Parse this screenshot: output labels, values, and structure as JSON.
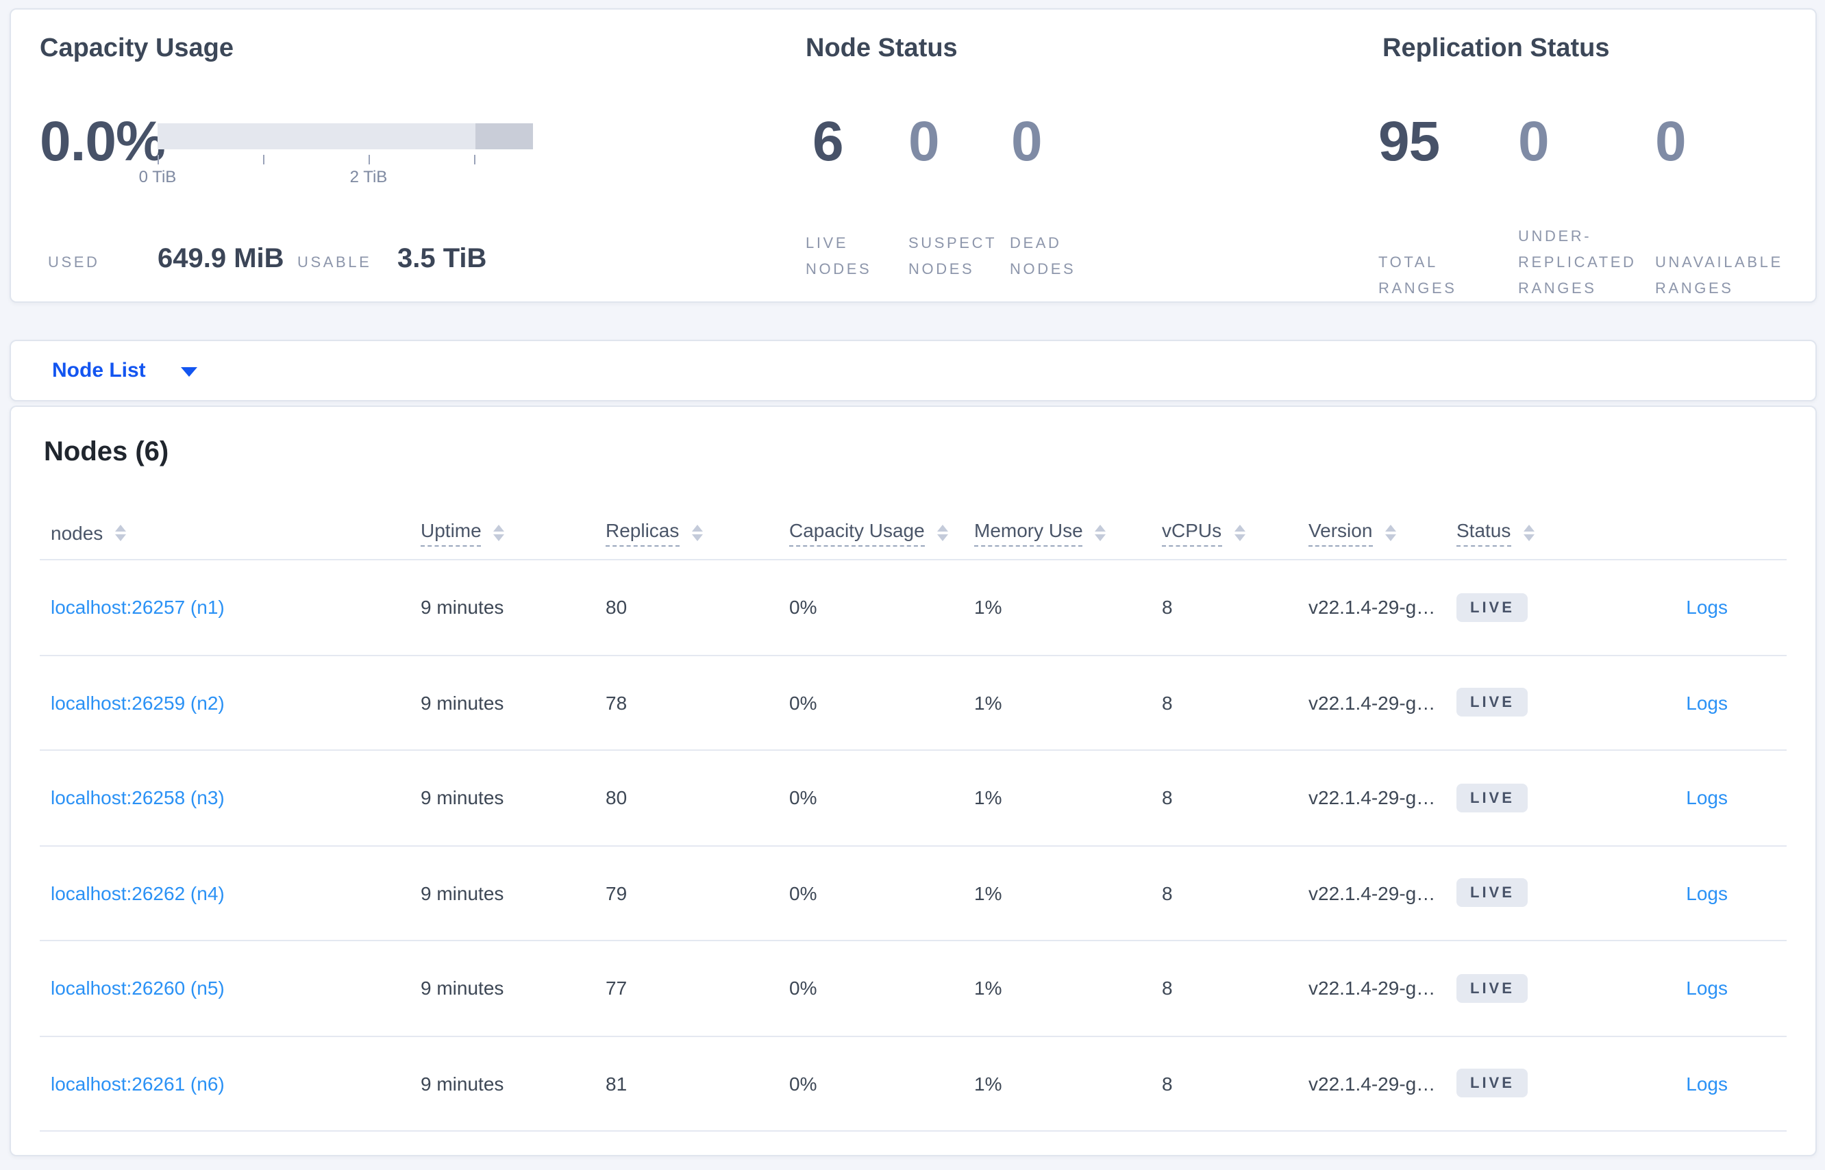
{
  "summary": {
    "capacity": {
      "title": "Capacity Usage",
      "percent": "0.0%",
      "ticks": [
        "0 TiB",
        "2 TiB"
      ],
      "used_label": "USED",
      "used_value": "649.9 MiB",
      "usable_label": "USABLE",
      "usable_value": "3.5 TiB"
    },
    "node_status": {
      "title": "Node Status",
      "stats": [
        {
          "value": "6",
          "label": "LIVE NODES"
        },
        {
          "value": "0",
          "label": "SUSPECT NODES"
        },
        {
          "value": "0",
          "label": "DEAD NODES"
        }
      ]
    },
    "replication": {
      "title": "Replication Status",
      "stats": [
        {
          "value": "95",
          "label": "TOTAL RANGES"
        },
        {
          "value": "0",
          "label": "UNDER-REPLICATED RANGES"
        },
        {
          "value": "0",
          "label": "UNAVAILABLE RANGES"
        }
      ]
    }
  },
  "view_selector": {
    "label": "Node List"
  },
  "table": {
    "title": "Nodes (6)",
    "columns": [
      {
        "label": "nodes",
        "tooltip": false
      },
      {
        "label": "Uptime",
        "tooltip": true
      },
      {
        "label": "Replicas",
        "tooltip": true
      },
      {
        "label": "Capacity Usage",
        "tooltip": true
      },
      {
        "label": "Memory Use",
        "tooltip": true
      },
      {
        "label": "vCPUs",
        "tooltip": true
      },
      {
        "label": "Version",
        "tooltip": true
      },
      {
        "label": "Status",
        "tooltip": true
      }
    ],
    "rows": [
      {
        "node": "localhost:26257 (n1)",
        "uptime": "9 minutes",
        "replicas": "80",
        "capacity": "0%",
        "memory": "1%",
        "vcpus": "8",
        "version": "v22.1.4-29-g…",
        "status": "LIVE",
        "logs": "Logs"
      },
      {
        "node": "localhost:26259 (n2)",
        "uptime": "9 minutes",
        "replicas": "78",
        "capacity": "0%",
        "memory": "1%",
        "vcpus": "8",
        "version": "v22.1.4-29-g…",
        "status": "LIVE",
        "logs": "Logs"
      },
      {
        "node": "localhost:26258 (n3)",
        "uptime": "9 minutes",
        "replicas": "80",
        "capacity": "0%",
        "memory": "1%",
        "vcpus": "8",
        "version": "v22.1.4-29-g…",
        "status": "LIVE",
        "logs": "Logs"
      },
      {
        "node": "localhost:26262 (n4)",
        "uptime": "9 minutes",
        "replicas": "79",
        "capacity": "0%",
        "memory": "1%",
        "vcpus": "8",
        "version": "v22.1.4-29-g…",
        "status": "LIVE",
        "logs": "Logs"
      },
      {
        "node": "localhost:26260 (n5)",
        "uptime": "9 minutes",
        "replicas": "77",
        "capacity": "0%",
        "memory": "1%",
        "vcpus": "8",
        "version": "v22.1.4-29-g…",
        "status": "LIVE",
        "logs": "Logs"
      },
      {
        "node": "localhost:26261 (n6)",
        "uptime": "9 minutes",
        "replicas": "81",
        "capacity": "0%",
        "memory": "1%",
        "vcpus": "8",
        "version": "v22.1.4-29-g…",
        "status": "LIVE",
        "logs": "Logs"
      }
    ]
  },
  "colors": {
    "accent_blue": "#1355f0",
    "link_blue": "#2a91f5",
    "badge_bg": "#e5e9f1",
    "badge_text": "#475268",
    "bar_light": "#e4e7ee",
    "bar_dark": "#c9cdd8",
    "page_bg": "#f3f5fa"
  }
}
